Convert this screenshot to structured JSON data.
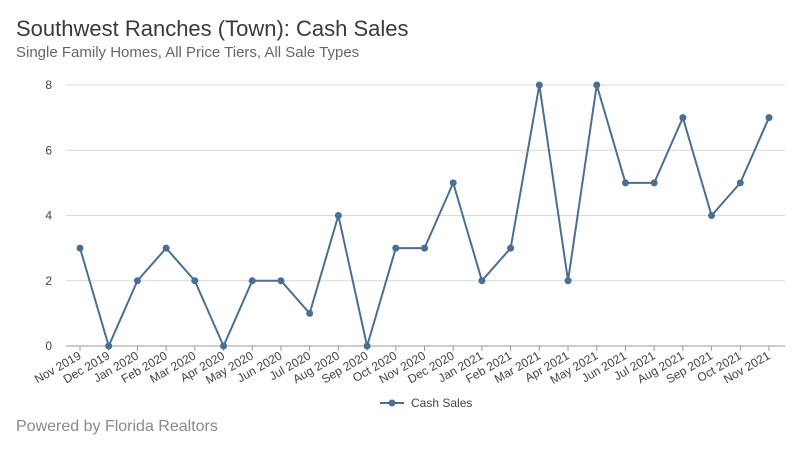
{
  "title": "Southwest Ranches (Town): Cash Sales",
  "subtitle": "Single Family Homes, All Price Tiers, All Sale Types",
  "footer": "Powered by Florida Realtors",
  "colors": {
    "line": "#4a6f93",
    "grid": "#d9d9d9",
    "axis": "#999999"
  },
  "chart_data": {
    "type": "line",
    "title": "Southwest Ranches (Town): Cash Sales",
    "subtitle": "Single Family Homes, All Price Tiers, All Sale Types",
    "xlabel": "",
    "ylabel": "",
    "ylim": [
      0,
      8
    ],
    "yticks": [
      0,
      2,
      4,
      6,
      8
    ],
    "grid": true,
    "legend_position": "bottom",
    "categories": [
      "Nov 2019",
      "Dec 2019",
      "Jan 2020",
      "Feb 2020",
      "Mar 2020",
      "Apr 2020",
      "May 2020",
      "Jun 2020",
      "Jul 2020",
      "Aug 2020",
      "Sep 2020",
      "Oct 2020",
      "Nov 2020",
      "Dec 2020",
      "Jan 2021",
      "Feb 2021",
      "Mar 2021",
      "Apr 2021",
      "May 2021",
      "Jun 2021",
      "Jul 2021",
      "Aug 2021",
      "Sep 2021",
      "Oct 2021",
      "Nov 2021"
    ],
    "series": [
      {
        "name": "Cash Sales",
        "values": [
          3,
          0,
          2,
          3,
          2,
          0,
          2,
          2,
          1,
          4,
          0,
          3,
          3,
          5,
          2,
          3,
          8,
          2,
          8,
          5,
          5,
          7,
          4,
          5,
          7
        ]
      }
    ]
  }
}
